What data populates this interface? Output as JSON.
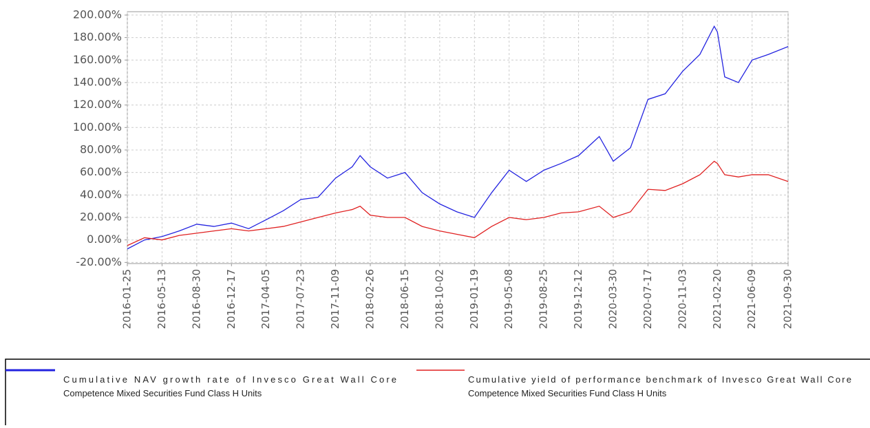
{
  "chart_data": {
    "type": "line",
    "x": [
      "2016-01-25",
      "2016-03-19",
      "2016-05-13",
      "2016-07-06",
      "2016-08-30",
      "2016-10-23",
      "2016-12-17",
      "2017-02-09",
      "2017-04-05",
      "2017-05-29",
      "2017-07-23",
      "2017-09-15",
      "2017-11-09",
      "2017-12-31",
      "2018-01-25",
      "2018-02-26",
      "2018-04-21",
      "2018-06-15",
      "2018-08-08",
      "2018-10-02",
      "2018-11-25",
      "2019-01-19",
      "2019-03-14",
      "2019-05-08",
      "2019-07-01",
      "2019-08-25",
      "2019-10-18",
      "2019-12-12",
      "2020-02-15",
      "2020-03-30",
      "2020-05-23",
      "2020-07-17",
      "2020-09-09",
      "2020-11-03",
      "2020-12-27",
      "2021-02-10",
      "2021-02-20",
      "2021-03-15",
      "2021-04-27",
      "2021-06-09",
      "2021-07-30",
      "2021-09-30"
    ],
    "series": [
      {
        "name": "Cumulative NAV growth rate of Invesco Great Wall Core Competence Mixed Securities Fund Class H Units",
        "color": "#2323e0",
        "values": [
          -8,
          0,
          3,
          8,
          14,
          12,
          15,
          10,
          18,
          26,
          36,
          38,
          55,
          65,
          75,
          65,
          55,
          60,
          42,
          32,
          25,
          20,
          42,
          62,
          52,
          62,
          68,
          75,
          92,
          70,
          82,
          125,
          130,
          150,
          165,
          190,
          185,
          145,
          140,
          160,
          165,
          172
        ]
      },
      {
        "name": "Cumulative yield of performance benchmark of Invesco Great Wall Core Competence Mixed Securities Fund Class H Units",
        "color": "#e02020",
        "values": [
          -5,
          2,
          0,
          4,
          6,
          8,
          10,
          8,
          10,
          12,
          16,
          20,
          24,
          27,
          30,
          22,
          20,
          20,
          12,
          8,
          5,
          2,
          12,
          20,
          18,
          20,
          24,
          25,
          30,
          20,
          25,
          45,
          44,
          50,
          58,
          70,
          68,
          58,
          56,
          58,
          58,
          52
        ]
      }
    ],
    "xlim": [
      "2016-01-25",
      "2021-09-30"
    ],
    "xticks": [
      "2016-01-25",
      "2016-05-13",
      "2016-08-30",
      "2016-12-17",
      "2017-04-05",
      "2017-07-23",
      "2017-11-09",
      "2018-02-26",
      "2018-06-15",
      "2018-10-02",
      "2019-01-19",
      "2019-05-08",
      "2019-08-25",
      "2019-12-12",
      "2020-03-30",
      "2020-07-17",
      "2020-11-03",
      "2021-02-20",
      "2021-06-09",
      "2021-09-30"
    ],
    "ylim": [
      -21,
      203
    ],
    "yticks": [
      {
        "value": -20,
        "label": "-20.00%"
      },
      {
        "value": 0,
        "label": "0.00%"
      },
      {
        "value": 20,
        "label": "20.00%"
      },
      {
        "value": 40,
        "label": "40.00%"
      },
      {
        "value": 60,
        "label": "60.00%"
      },
      {
        "value": 80,
        "label": "80.00%"
      },
      {
        "value": 100,
        "label": "100.00%"
      },
      {
        "value": 120,
        "label": "120.00%"
      },
      {
        "value": 140,
        "label": "140.00%"
      },
      {
        "value": 160,
        "label": "160.00%"
      },
      {
        "value": 180,
        "label": "180.00%"
      },
      {
        "value": 200,
        "label": "200.00%"
      }
    ],
    "grid": true
  }
}
